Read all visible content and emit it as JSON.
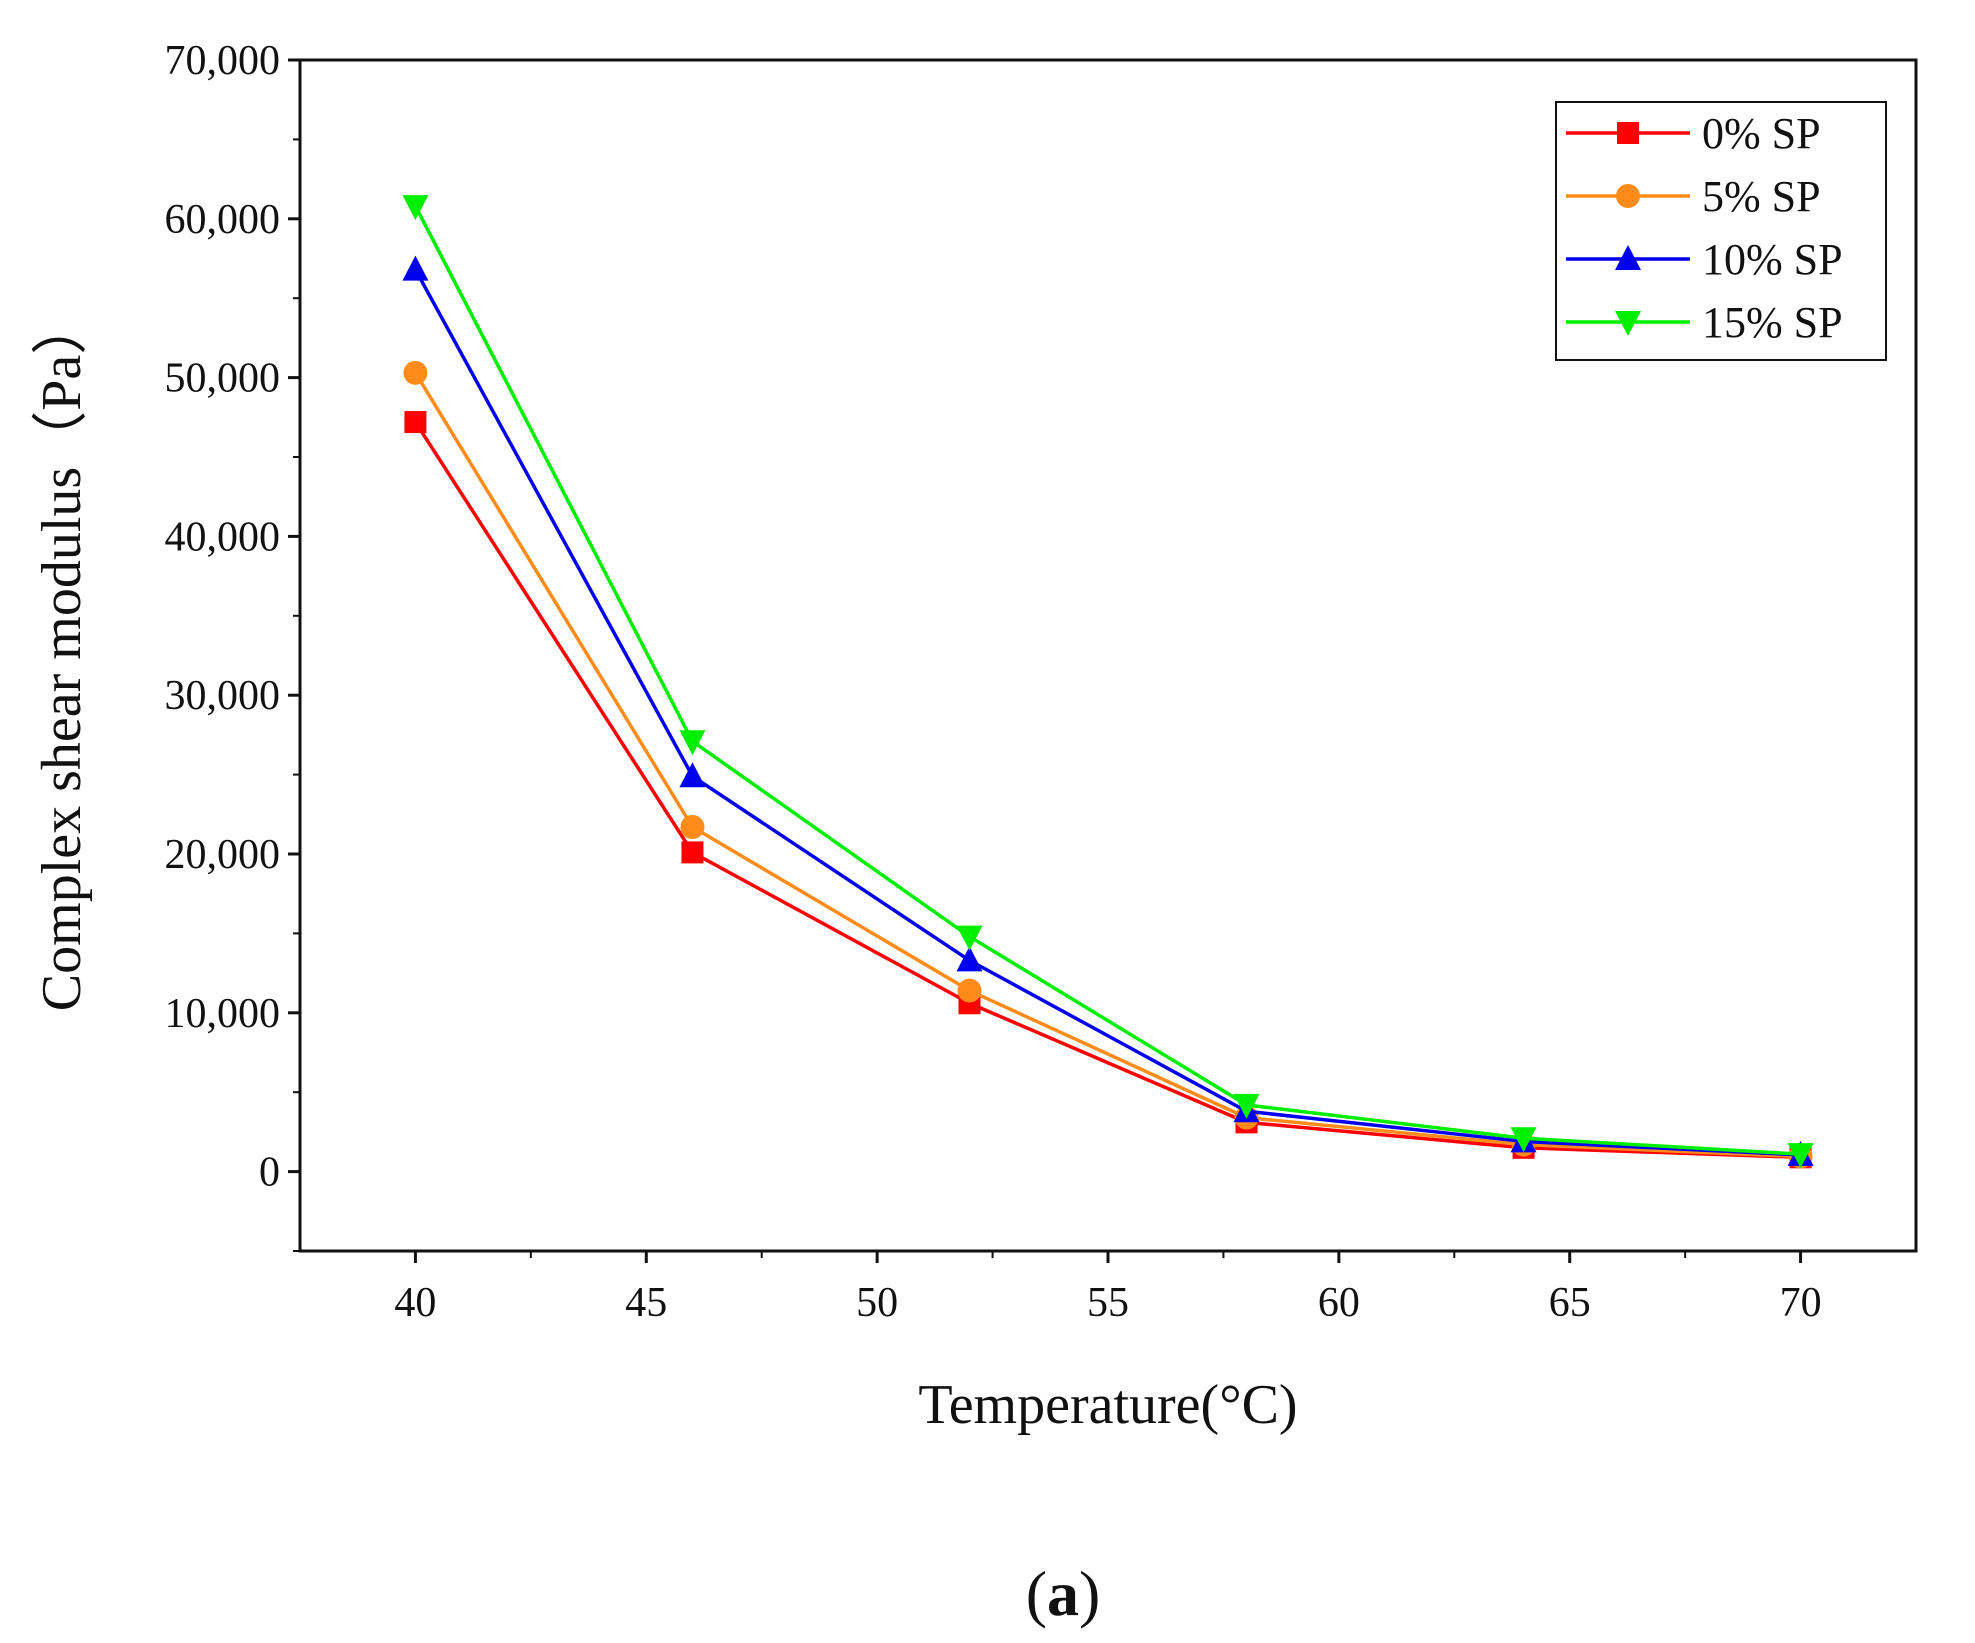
{
  "chart_data": {
    "type": "line",
    "title": "",
    "xlabel": "Temperature(°C)",
    "ylabel": "Complex shear modulus（Pa）",
    "panel_label": "(a)",
    "panel_letter": "a",
    "xlim": [
      37.5,
      72.5
    ],
    "ylim": [
      -5000,
      70000
    ],
    "xticks": [
      40,
      45,
      50,
      55,
      60,
      65,
      70
    ],
    "yticks": [
      0,
      10000,
      20000,
      30000,
      40000,
      50000,
      60000,
      70000
    ],
    "ytick_labels": [
      "0",
      "10,000",
      "20,000",
      "30,000",
      "40,000",
      "50,000",
      "60,000",
      "70,000"
    ],
    "grid": false,
    "legend_position": "top-right",
    "x": [
      40,
      46,
      52,
      58,
      64,
      70
    ],
    "series": [
      {
        "name": "0% SP",
        "color": "#ff0000",
        "marker": "square",
        "values": [
          47200,
          20100,
          10600,
          3100,
          1500,
          900
        ]
      },
      {
        "name": "5% SP",
        "color": "#ff8c1a",
        "marker": "circle",
        "values": [
          50300,
          21700,
          11400,
          3400,
          1700,
          950
        ]
      },
      {
        "name": "10% SP",
        "color": "#0000ee",
        "marker": "triangle-up",
        "values": [
          56800,
          24900,
          13300,
          3800,
          1900,
          1050
        ]
      },
      {
        "name": "15% SP",
        "color": "#00ee00",
        "marker": "triangle-down",
        "values": [
          60800,
          27100,
          14800,
          4200,
          2100,
          1100
        ]
      }
    ]
  }
}
